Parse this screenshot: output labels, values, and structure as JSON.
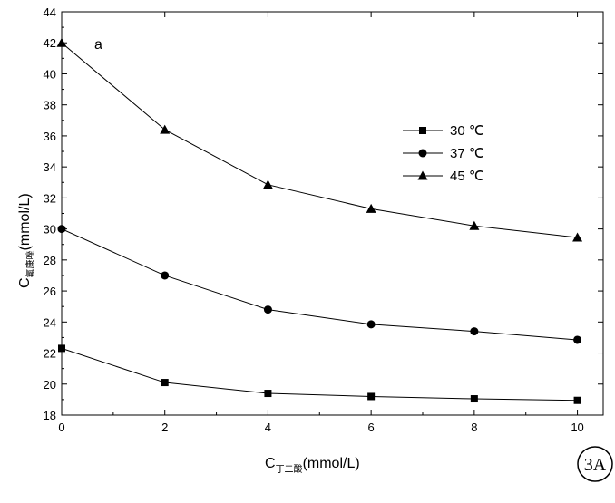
{
  "chart_data": {
    "type": "line",
    "panel_label": "a",
    "badge": "3A",
    "xlabel": {
      "main": "C",
      "sub": "丁二酸",
      "unit": "(mmol/L)"
    },
    "ylabel": {
      "main": "C",
      "sub": "氟康唑",
      "unit": "(mmol/L)"
    },
    "xlim": [
      0,
      10.5
    ],
    "ylim": [
      18,
      44
    ],
    "xticks": [
      0,
      2,
      4,
      6,
      8,
      10
    ],
    "yticks": [
      18,
      20,
      22,
      24,
      26,
      28,
      30,
      32,
      34,
      36,
      38,
      40,
      42,
      44
    ],
    "x": [
      0,
      2,
      4,
      6,
      8,
      10
    ],
    "legend_position": "right",
    "series": [
      {
        "name": "30 ℃",
        "marker": "square",
        "values": [
          22.3,
          20.1,
          19.4,
          19.2,
          19.05,
          18.95
        ]
      },
      {
        "name": "37 ℃",
        "marker": "circle",
        "values": [
          30.0,
          27.0,
          24.8,
          23.85,
          23.4,
          22.85
        ]
      },
      {
        "name": "45 ℃",
        "marker": "triangle",
        "values": [
          42.0,
          36.4,
          32.85,
          31.3,
          30.2,
          29.45
        ]
      }
    ]
  }
}
